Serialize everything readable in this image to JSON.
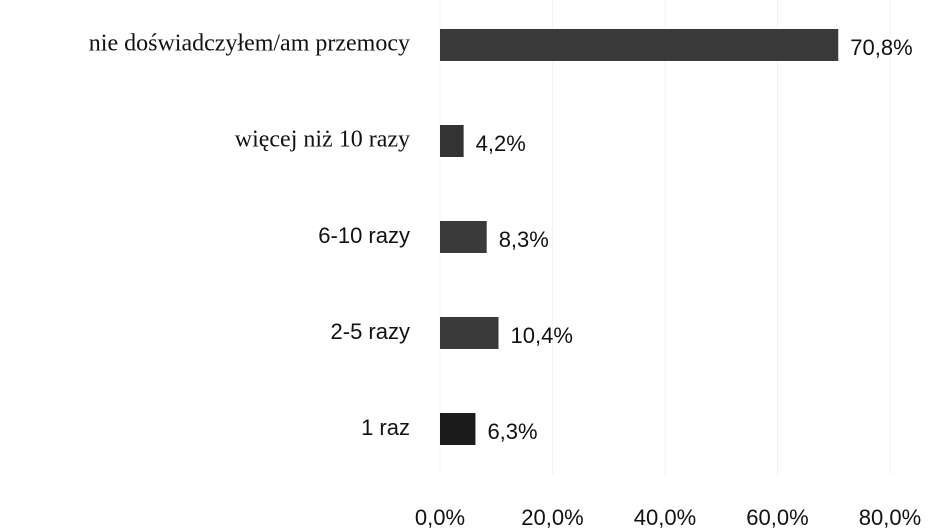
{
  "chart_data": {
    "type": "hbar",
    "categories": [
      "nie doświadczyłem/am przemocy",
      "więcej niż 10 razy",
      "6-10 razy",
      "2-5 razy",
      "1 raz"
    ],
    "values": [
      70.8,
      4.2,
      8.3,
      10.4,
      6.3
    ],
    "value_labels": [
      "70,8%",
      "4,2%",
      "8,3%",
      "10,4%",
      "6,3%"
    ],
    "colors": [
      "#3a3a3a",
      "#333333",
      "#3a3a3a",
      "#3a3a3a",
      "#1c1c1c"
    ],
    "xlim": [
      0,
      80
    ],
    "xticks": [
      {
        "value": 0,
        "label": "0,0%"
      },
      {
        "value": 20,
        "label": "20,0%"
      },
      {
        "value": 40,
        "label": "40,0%"
      },
      {
        "value": 60,
        "label": "60,0%"
      },
      {
        "value": 80,
        "label": "80,0%"
      }
    ],
    "grid": true
  }
}
